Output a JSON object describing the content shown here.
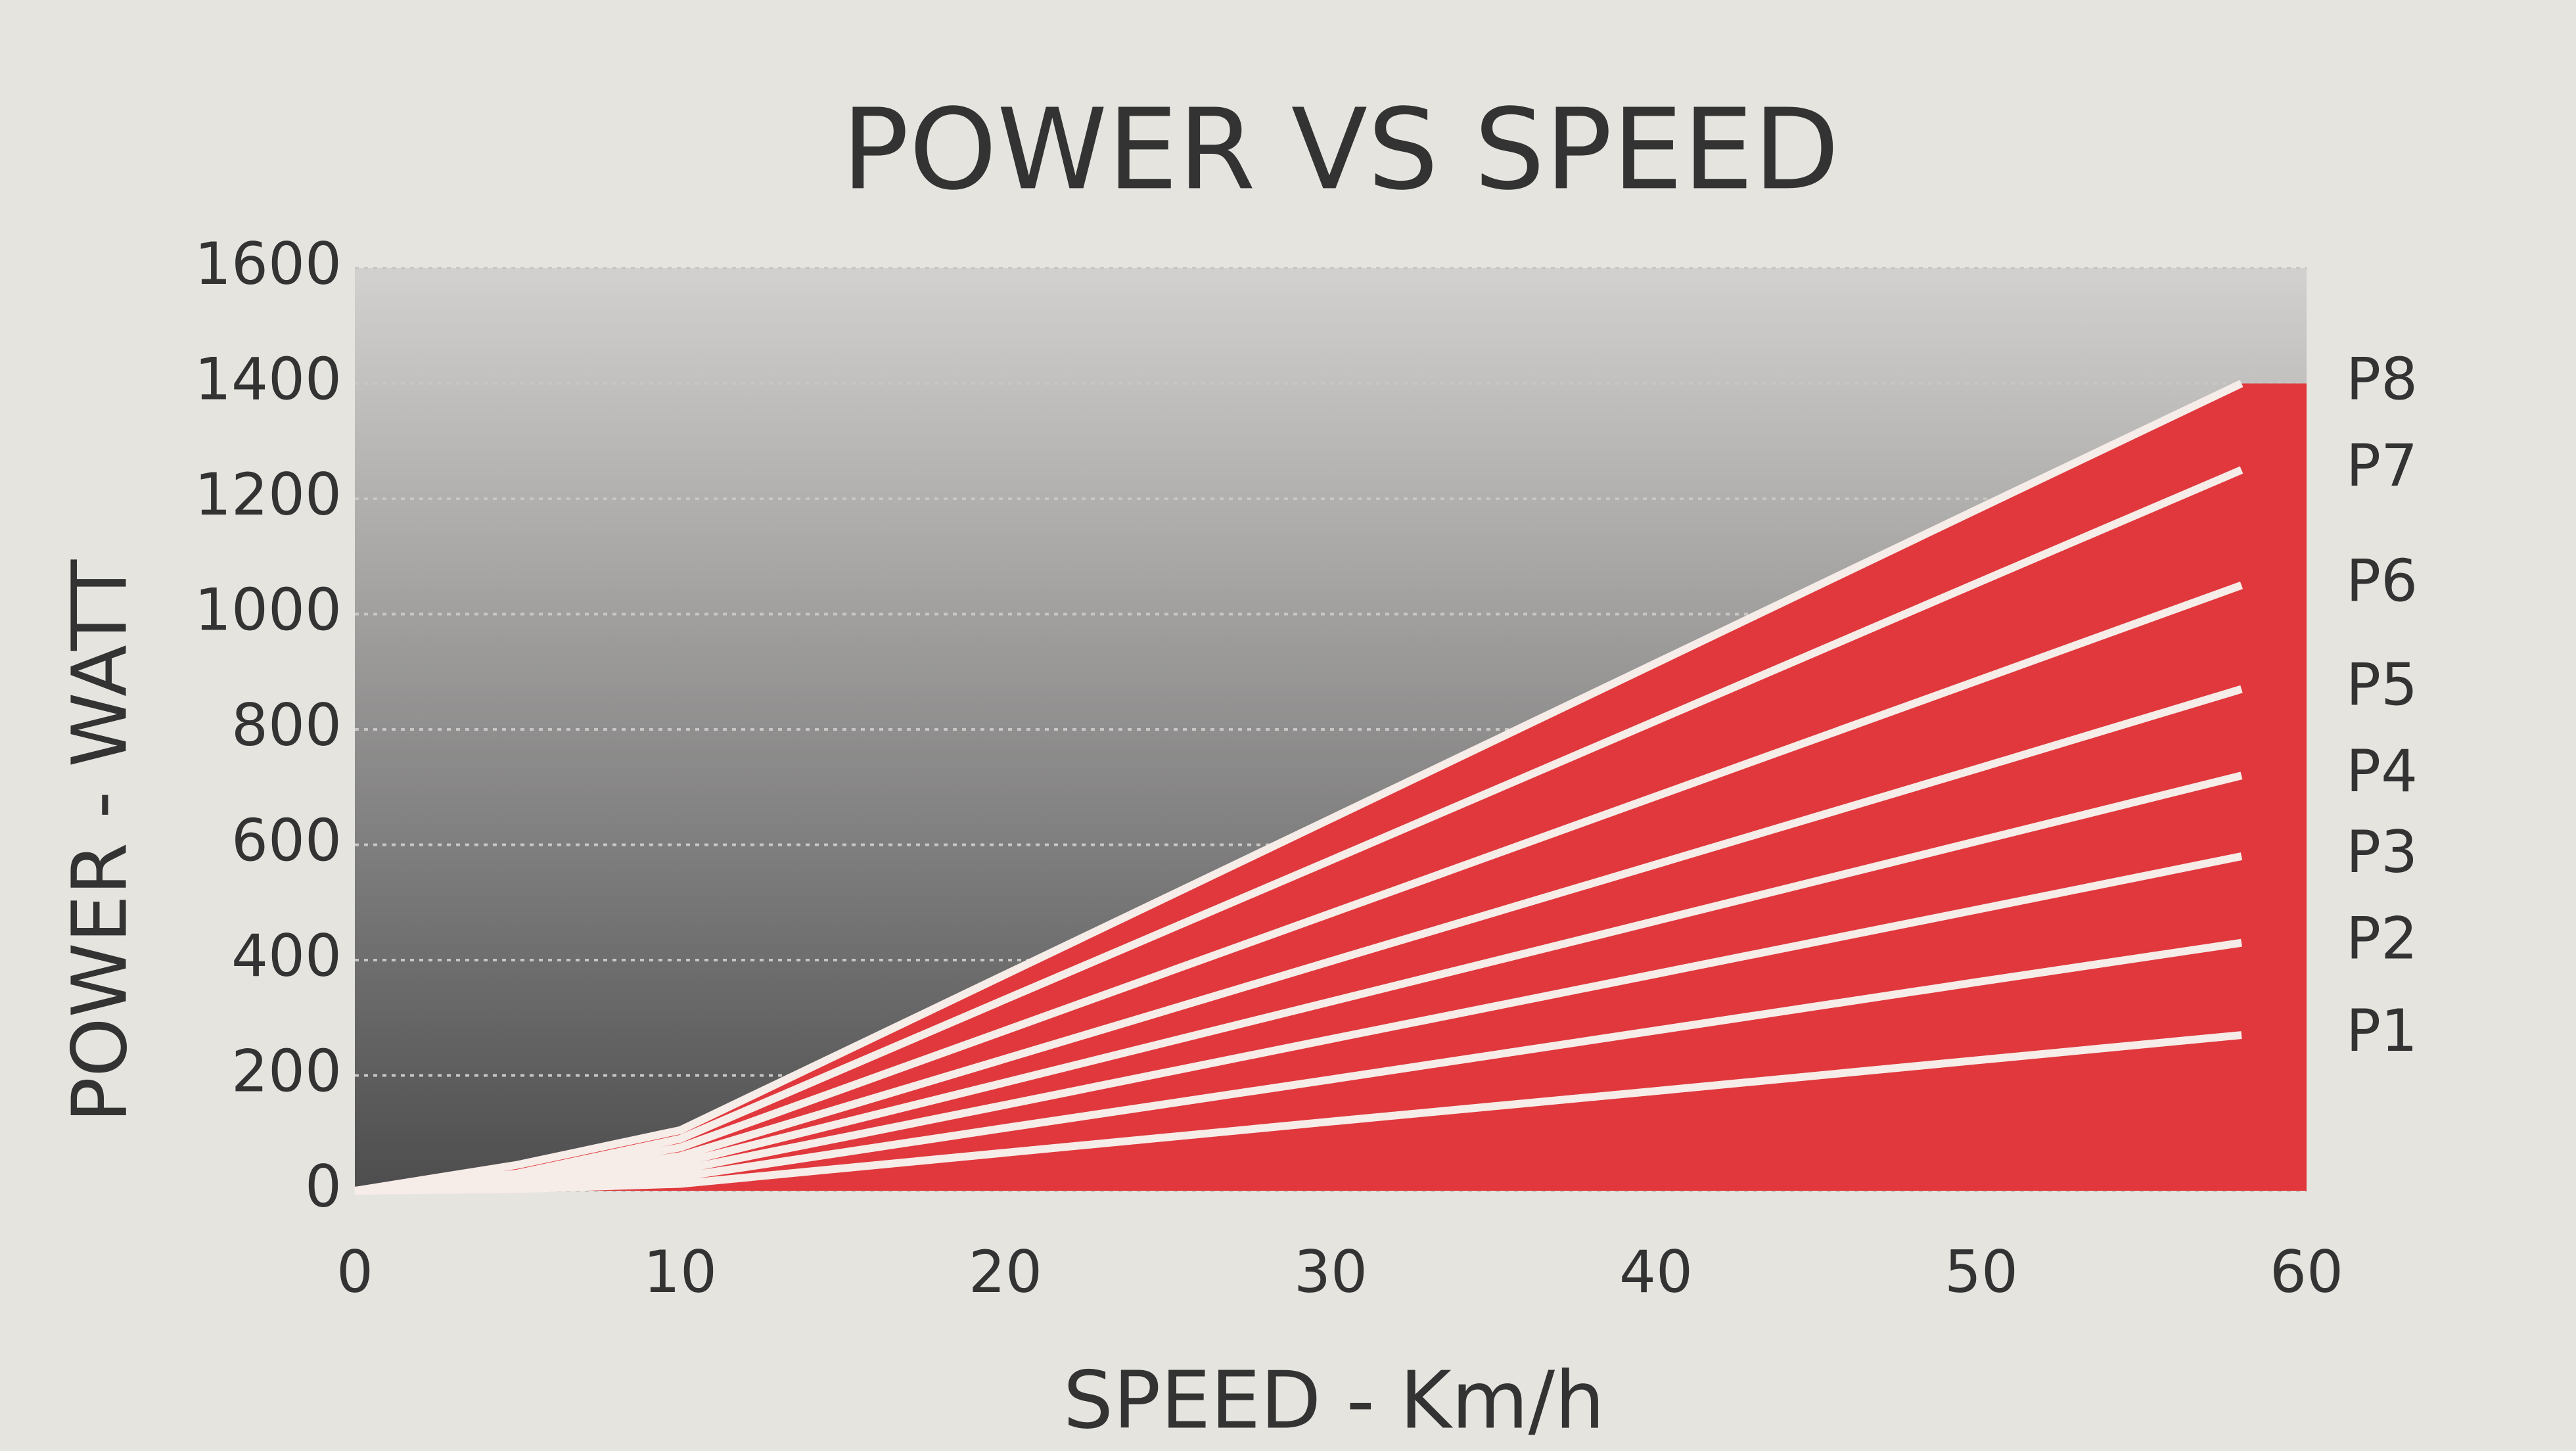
{
  "chart_data": {
    "type": "line",
    "title": "POWER VS SPEED",
    "x_label": "SPEED - Km/h",
    "y_label": "POWER - WATT",
    "x": [
      0,
      5,
      10,
      20,
      30,
      40,
      50,
      58
    ],
    "series": [
      {
        "name": "P1",
        "color": "#f6ece8",
        "values": [
          0,
          3,
          12,
          66,
          120,
          173,
          227,
          270
        ]
      },
      {
        "name": "P2",
        "color": "#f6ece8",
        "values": [
          0,
          6,
          24,
          109,
          193,
          278,
          363,
          430
        ]
      },
      {
        "name": "P3",
        "color": "#f6ece8",
        "values": [
          0,
          10,
          36,
          149,
          263,
          376,
          489,
          580
        ]
      },
      {
        "name": "P4",
        "color": "#f6ece8",
        "values": [
          0,
          15,
          48,
          188,
          328,
          468,
          608,
          720
        ]
      },
      {
        "name": "P5",
        "color": "#f6ece8",
        "values": [
          0,
          20,
          60,
          229,
          398,
          566,
          734,
          870
        ]
      },
      {
        "name": "P6",
        "color": "#f6ece8",
        "values": [
          0,
          25,
          75,
          278,
          481,
          684,
          887,
          1050
        ]
      },
      {
        "name": "P7",
        "color": "#f6ece8",
        "values": [
          0,
          30,
          90,
          332,
          573,
          815,
          1057,
          1250
        ]
      },
      {
        "name": "P8",
        "color": "#f6ece8",
        "values": [
          0,
          45,
          105,
          375,
          645,
          915,
          1185,
          1400
        ]
      }
    ],
    "fill_color": "#e0383c",
    "xlim": [
      0,
      60
    ],
    "xticks": [
      0,
      10,
      20,
      30,
      40,
      50,
      60
    ],
    "ylim": [
      0,
      1600
    ],
    "yticks": [
      0,
      200,
      400,
      600,
      800,
      1000,
      1200,
      1400,
      1600
    ],
    "grid": true
  }
}
